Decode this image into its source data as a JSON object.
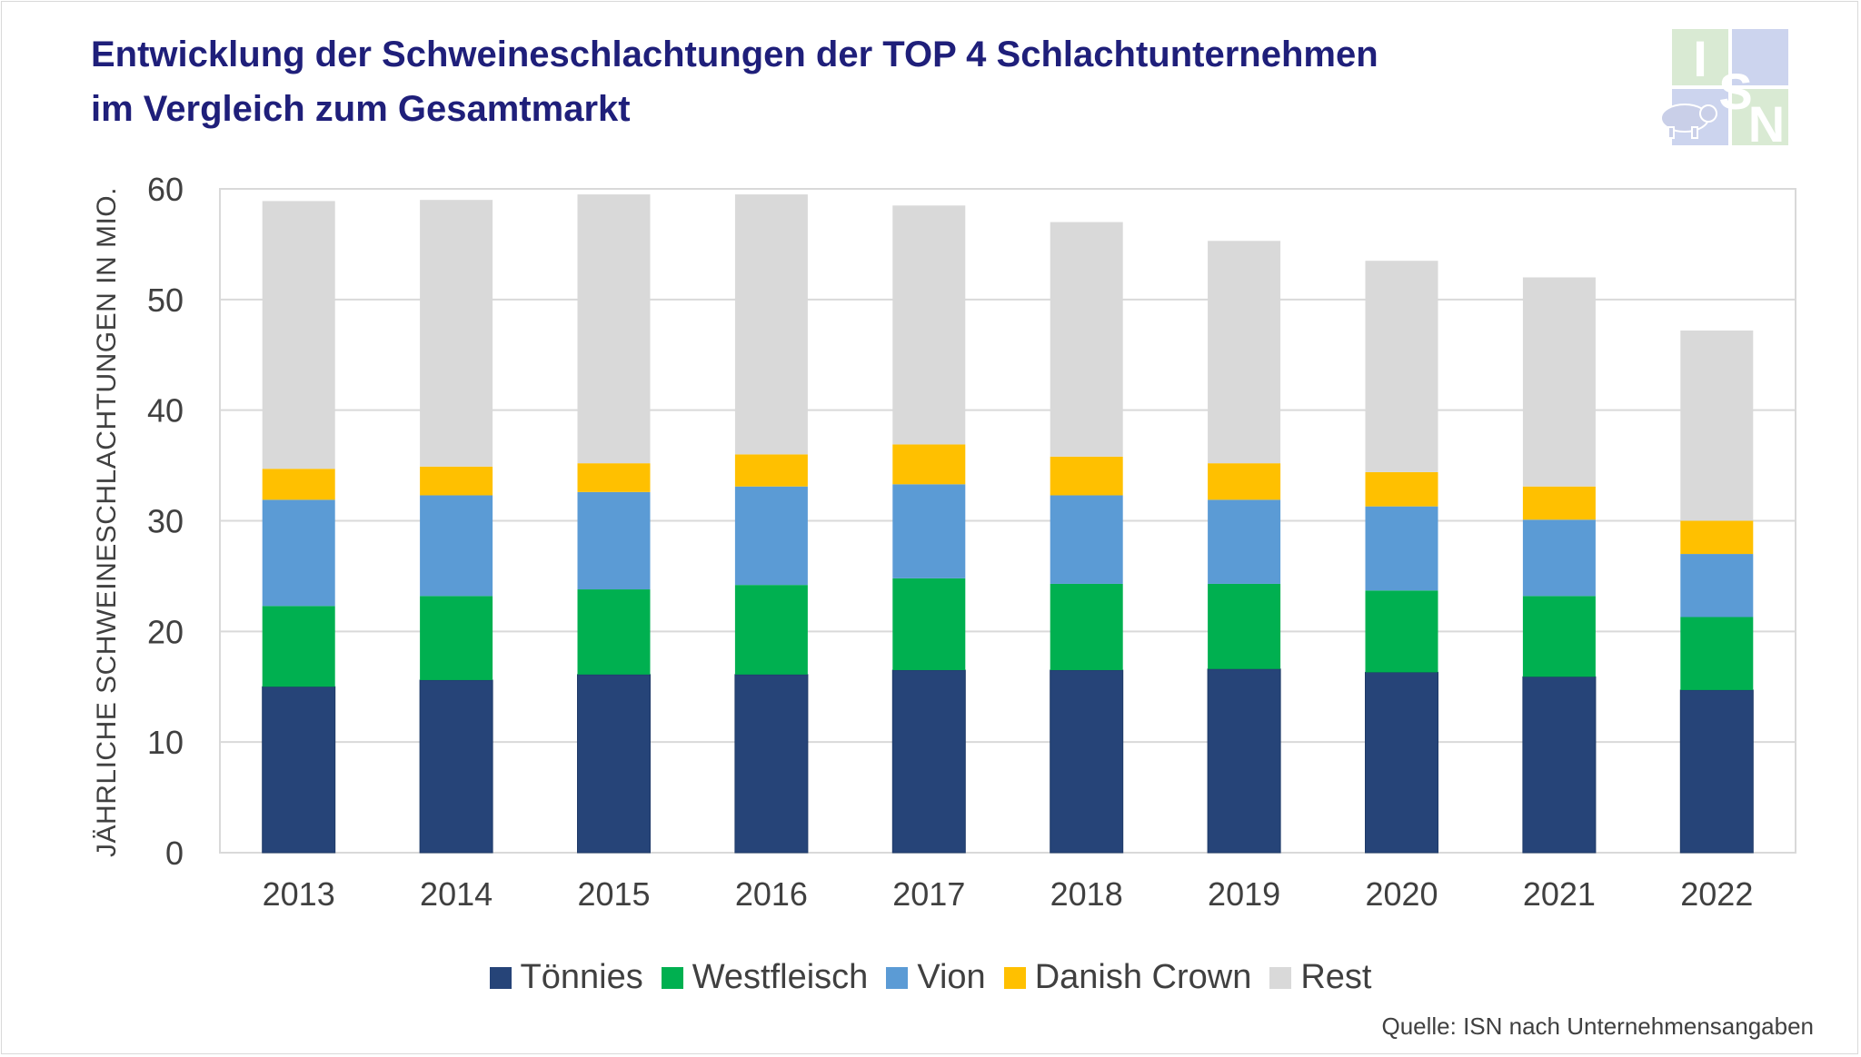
{
  "header": {
    "title_line1": "Entwicklung der Schweineschlachtungen der TOP 4 Schlachtunternehmen",
    "title_line2": "im Vergleich zum Gesamtmarkt"
  },
  "logo": {
    "letters": [
      "I",
      "S",
      "N"
    ],
    "icon": "pig-icon"
  },
  "source": "Quelle: ISN nach Unternehmensangaben",
  "chart_data": {
    "type": "bar",
    "stacked": true,
    "title": "",
    "xlabel": "",
    "ylabel": "JÄHRLICHE SCHWEINESCHLACHTUNGEN IN MIO.",
    "ylim": [
      0,
      60
    ],
    "yticks": [
      0,
      10,
      20,
      30,
      40,
      50,
      60
    ],
    "grid": true,
    "legend_position": "bottom",
    "categories": [
      "2013",
      "2014",
      "2015",
      "2016",
      "2017",
      "2018",
      "2019",
      "2020",
      "2021",
      "2022"
    ],
    "series": [
      {
        "name": "Tönnies",
        "color": "#264478",
        "values": [
          15.0,
          15.6,
          16.1,
          16.1,
          16.5,
          16.5,
          16.6,
          16.3,
          15.9,
          14.7
        ]
      },
      {
        "name": "Westfleisch",
        "color": "#00b050",
        "values": [
          7.3,
          7.6,
          7.7,
          8.1,
          8.3,
          7.8,
          7.7,
          7.4,
          7.3,
          6.6
        ]
      },
      {
        "name": "Vion",
        "color": "#5b9bd5",
        "values": [
          9.6,
          9.1,
          8.8,
          8.9,
          8.5,
          8.0,
          7.6,
          7.6,
          6.9,
          5.7
        ]
      },
      {
        "name": "Danish Crown",
        "color": "#ffc000",
        "values": [
          2.8,
          2.6,
          2.6,
          2.9,
          3.6,
          3.5,
          3.3,
          3.1,
          3.0,
          3.0
        ]
      },
      {
        "name": "Rest",
        "color": "#d9d9d9",
        "values": [
          24.2,
          24.1,
          24.3,
          23.5,
          21.6,
          21.2,
          20.1,
          19.1,
          18.9,
          17.2
        ]
      }
    ]
  }
}
